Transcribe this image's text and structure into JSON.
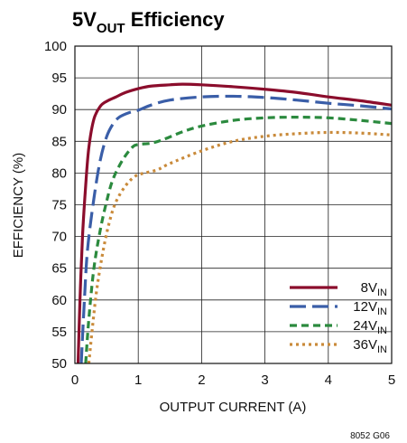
{
  "chart_data": {
    "type": "line",
    "title": {
      "main": "5V",
      "sub": "OUT",
      "rest": " Efficiency"
    },
    "xlabel": "OUTPUT CURRENT (A)",
    "ylabel": "EFFICIENCY (%)",
    "xlim": [
      0,
      5
    ],
    "ylim": [
      50,
      100
    ],
    "x_ticks": [
      "0",
      "1",
      "2",
      "3",
      "4",
      "5"
    ],
    "y_ticks": [
      "100",
      "95",
      "90",
      "85",
      "80",
      "75",
      "70",
      "65",
      "60",
      "55",
      "50"
    ],
    "grid": true,
    "legend_position": "bottom-right",
    "figure_id": "8052 G06",
    "series": [
      {
        "name": "8V",
        "name_sub": "IN",
        "color": "#8b0d2c",
        "dash": "solid",
        "points": [
          [
            0.05,
            50
          ],
          [
            0.08,
            60
          ],
          [
            0.12,
            70
          ],
          [
            0.17,
            78
          ],
          [
            0.22,
            84
          ],
          [
            0.3,
            88.5
          ],
          [
            0.4,
            90.5
          ],
          [
            0.5,
            91.3
          ],
          [
            0.65,
            92
          ],
          [
            0.8,
            92.7
          ],
          [
            1.0,
            93.3
          ],
          [
            1.2,
            93.7
          ],
          [
            1.5,
            93.9
          ],
          [
            1.7,
            94
          ],
          [
            2.0,
            93.9
          ],
          [
            2.5,
            93.6
          ],
          [
            3.0,
            93.2
          ],
          [
            3.5,
            92.7
          ],
          [
            4.0,
            92
          ],
          [
            4.5,
            91.4
          ],
          [
            5.0,
            90.7
          ]
        ]
      },
      {
        "name": "12V",
        "name_sub": "IN",
        "color": "#3a5ea8",
        "dash": "long",
        "points": [
          [
            0.1,
            50
          ],
          [
            0.15,
            60
          ],
          [
            0.2,
            68
          ],
          [
            0.3,
            76
          ],
          [
            0.4,
            82
          ],
          [
            0.5,
            85.7
          ],
          [
            0.6,
            87.7
          ],
          [
            0.7,
            88.8
          ],
          [
            0.85,
            89.5
          ],
          [
            1.0,
            89.9
          ],
          [
            1.2,
            90.7
          ],
          [
            1.5,
            91.5
          ],
          [
            2.0,
            92
          ],
          [
            2.5,
            92.1
          ],
          [
            3.0,
            91.9
          ],
          [
            3.5,
            91.5
          ],
          [
            4.0,
            91
          ],
          [
            4.5,
            90.6
          ],
          [
            5.0,
            90.1
          ]
        ]
      },
      {
        "name": "24V",
        "name_sub": "IN",
        "color": "#2b8a3e",
        "dash": "medium",
        "points": [
          [
            0.17,
            50
          ],
          [
            0.22,
            57
          ],
          [
            0.3,
            65
          ],
          [
            0.4,
            71
          ],
          [
            0.5,
            75.5
          ],
          [
            0.6,
            79
          ],
          [
            0.75,
            82
          ],
          [
            0.9,
            84
          ],
          [
            1.0,
            84.5
          ],
          [
            1.2,
            84.7
          ],
          [
            1.4,
            85.3
          ],
          [
            1.7,
            86.5
          ],
          [
            2.0,
            87.4
          ],
          [
            2.5,
            88.3
          ],
          [
            3.0,
            88.7
          ],
          [
            3.5,
            88.8
          ],
          [
            4.0,
            88.7
          ],
          [
            4.5,
            88.3
          ],
          [
            5.0,
            87.8
          ]
        ]
      },
      {
        "name": "36V",
        "name_sub": "IN",
        "color": "#c98a3a",
        "dash": "dotted",
        "points": [
          [
            0.22,
            50
          ],
          [
            0.28,
            56
          ],
          [
            0.35,
            62
          ],
          [
            0.45,
            68
          ],
          [
            0.55,
            72.5
          ],
          [
            0.65,
            75.5
          ],
          [
            0.8,
            78
          ],
          [
            0.95,
            79.5
          ],
          [
            1.1,
            80
          ],
          [
            1.3,
            80.5
          ],
          [
            1.5,
            81.5
          ],
          [
            2.0,
            83.5
          ],
          [
            2.5,
            85
          ],
          [
            3.0,
            85.8
          ],
          [
            3.5,
            86.2
          ],
          [
            4.0,
            86.4
          ],
          [
            4.5,
            86.3
          ],
          [
            5.0,
            86
          ]
        ]
      }
    ]
  }
}
